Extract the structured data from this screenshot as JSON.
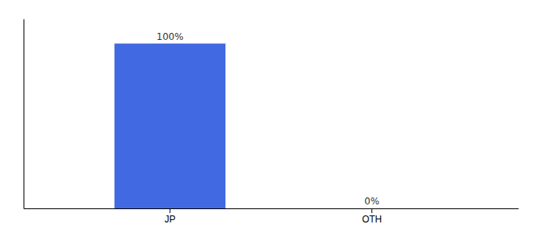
{
  "chart_data": {
    "type": "bar",
    "categories": [
      "JP",
      "OTH"
    ],
    "values": [
      100,
      0
    ],
    "value_labels": [
      "100%",
      "0%"
    ],
    "color": "#4169e1",
    "ylim": [
      0,
      115
    ],
    "data_labels": true,
    "tick_labels": "x"
  }
}
